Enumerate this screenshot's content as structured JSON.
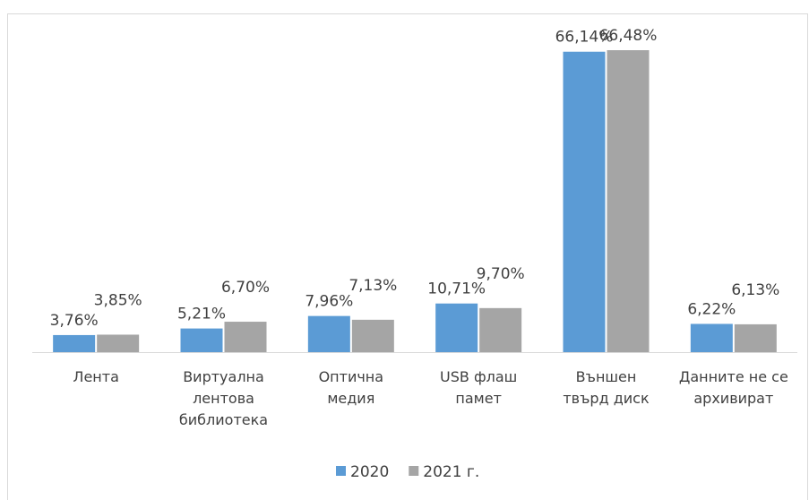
{
  "chart_data": {
    "type": "bar",
    "categories": [
      "Лента",
      "Виртуална\nлентова\nбиблиотека",
      "Оптична\nмедия",
      "USB флаш\nпамет",
      "Външен\nтвърд диск",
      "Данните не се\nархивират"
    ],
    "series": [
      {
        "name": "2020",
        "color": "#5b9bd5",
        "values": [
          3.76,
          5.21,
          7.96,
          10.71,
          66.14,
          6.22
        ],
        "value_labels": [
          "3,76%",
          "5,21%",
          "7,96%",
          "10,71%",
          "66,14%",
          "6,22%"
        ]
      },
      {
        "name": "2021 г.",
        "color": "#a5a5a5",
        "values": [
          3.85,
          6.7,
          7.13,
          9.7,
          66.48,
          6.13
        ],
        "value_labels": [
          "3,85%",
          "6,70%",
          "7,13%",
          "9,70%",
          "66,48%",
          "6,13%"
        ]
      }
    ],
    "legend": "bottom"
  }
}
